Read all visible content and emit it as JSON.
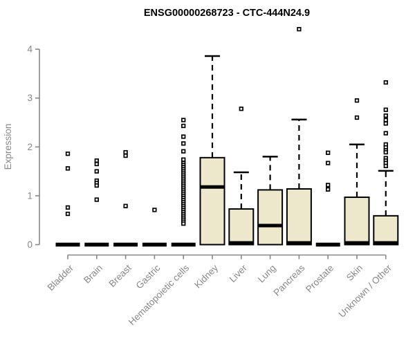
{
  "chart_data": {
    "type": "boxplot",
    "title": "ENSG00000268723 - CTC-444N24.9",
    "ylabel": "Expression",
    "xlabel": "",
    "yticks": [
      0,
      1,
      2,
      3,
      4
    ],
    "ylim": [
      0,
      4.5
    ],
    "grid": false,
    "legend": "none",
    "colors": {
      "box_fill": "#EDE7CB",
      "box_stroke": "#000000",
      "median": "#000000",
      "outlier": "#000000",
      "axis": "#878787",
      "title": "#000000"
    },
    "categories": [
      "Bladder",
      "Brain",
      "Breast",
      "Gastric",
      "Hematopoietic cells",
      "Kidney",
      "Liver",
      "Lung",
      "Pancreas",
      "Prostate",
      "Skin",
      "Unknown / Other"
    ],
    "series": [
      {
        "label": "Bladder",
        "q1": 0,
        "median": 0,
        "q3": 0,
        "whisker_low": 0,
        "whisker_high": 0,
        "collapsed": true,
        "outliers": [
          1.86,
          1.56,
          0.76,
          0.63
        ]
      },
      {
        "label": "Brain",
        "q1": 0,
        "median": 0,
        "q3": 0,
        "whisker_low": 0,
        "whisker_high": 0,
        "collapsed": true,
        "outliers": [
          1.72,
          1.65,
          1.5,
          1.31,
          1.26,
          1.21,
          0.92
        ]
      },
      {
        "label": "Breast",
        "q1": 0,
        "median": 0,
        "q3": 0,
        "whisker_low": 0,
        "whisker_high": 0,
        "collapsed": true,
        "outliers": [
          1.89,
          1.82,
          0.79
        ]
      },
      {
        "label": "Gastric",
        "q1": 0,
        "median": 0,
        "q3": 0,
        "whisker_low": 0,
        "whisker_high": 0,
        "collapsed": true,
        "outliers": [
          0.71
        ]
      },
      {
        "label": "Hematopoietic cells",
        "q1": 0,
        "median": 0,
        "q3": 0,
        "whisker_low": 0,
        "whisker_high": 0,
        "collapsed": true,
        "outliers": [
          2.55,
          2.43,
          2.21,
          2.07,
          1.91,
          1.74,
          1.67,
          1.63,
          1.59,
          1.55,
          1.51,
          1.47,
          1.43,
          1.39,
          1.35,
          1.31,
          1.27,
          1.23,
          1.19,
          1.15,
          1.11,
          1.07,
          1.03,
          0.99,
          0.95,
          0.91,
          0.87,
          0.83,
          0.79,
          0.75,
          0.71,
          0.67,
          0.63,
          0.59,
          0.55,
          0.51,
          0.47,
          0.43
        ]
      },
      {
        "label": "Kidney",
        "q1": 0,
        "median": 1.18,
        "q3": 1.78,
        "whisker_low": 0,
        "whisker_high": 3.86,
        "collapsed": false,
        "outliers": []
      },
      {
        "label": "Liver",
        "q1": 0,
        "median": 0,
        "q3": 0.73,
        "whisker_low": 0,
        "whisker_high": 1.48,
        "collapsed": false,
        "outliers": [
          2.78
        ]
      },
      {
        "label": "Lung",
        "q1": 0,
        "median": 0.39,
        "q3": 1.12,
        "whisker_low": 0,
        "whisker_high": 1.8,
        "collapsed": false,
        "outliers": []
      },
      {
        "label": "Pancreas",
        "q1": 0,
        "median": 0,
        "q3": 1.14,
        "whisker_low": 0,
        "whisker_high": 2.56,
        "collapsed": false,
        "outliers": [
          4.41
        ]
      },
      {
        "label": "Prostate",
        "q1": 0,
        "median": 0,
        "q3": 0,
        "whisker_low": 0,
        "whisker_high": 0,
        "collapsed": true,
        "outliers": [
          1.88,
          1.67,
          1.22,
          1.13
        ]
      },
      {
        "label": "Skin",
        "q1": 0,
        "median": 0,
        "q3": 0.97,
        "whisker_low": 0,
        "whisker_high": 2.05,
        "collapsed": false,
        "outliers": [
          2.95,
          2.6
        ]
      },
      {
        "label": "Unknown / Other",
        "q1": 0,
        "median": 0,
        "q3": 0.59,
        "whisker_low": 0,
        "whisker_high": 1.51,
        "collapsed": false,
        "outliers": [
          3.32,
          2.76,
          2.64,
          2.55,
          2.48,
          2.28,
          2.05,
          1.99,
          1.93,
          1.89,
          1.77,
          1.72,
          1.67,
          1.61
        ]
      }
    ]
  }
}
